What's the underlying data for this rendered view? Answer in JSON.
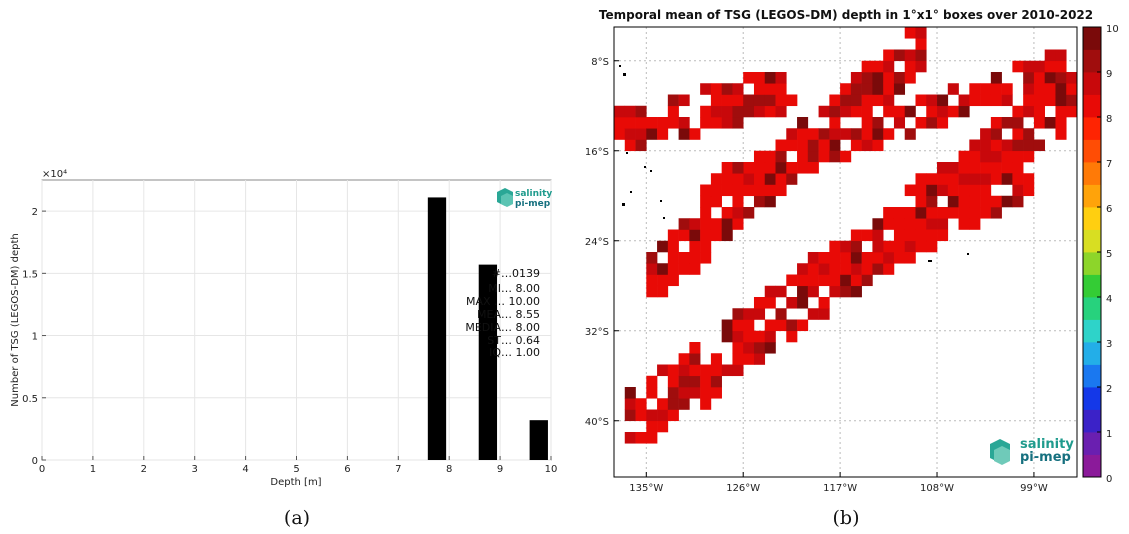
{
  "panel_a": {
    "caption": "(a)",
    "exponent": "×10⁴",
    "stats": [
      "#…0139",
      "MI… 8.00",
      "MAX … 10.00",
      "MEA… 8.55",
      "MEDIA… 8.00",
      "ST… 0.64",
      "IQ… 1.00"
    ],
    "logo": {
      "line1": "salinity",
      "line2": "pi-mep"
    }
  },
  "panel_b": {
    "caption": "(b)",
    "logo": {
      "line1": "salinity",
      "line2": "pi-mep"
    }
  },
  "chart_data": [
    {
      "type": "bar",
      "title": "",
      "xlabel": "Depth [m]",
      "ylabel": "Number of TSG (LEGOS-DM) depth",
      "x": [
        8,
        9,
        10
      ],
      "values": [
        21100,
        15700,
        3200
      ],
      "xlim": [
        0,
        10
      ],
      "ylim": [
        0,
        22500
      ],
      "x_ticks": [
        "0",
        "1",
        "2",
        "3",
        "4",
        "5",
        "6",
        "7",
        "8",
        "9",
        "10"
      ],
      "y_ticks": [
        "0",
        "0.5",
        "1",
        "1.5",
        "2"
      ],
      "y_tick_values": [
        0,
        5000,
        10000,
        15000,
        20000
      ],
      "grid": true,
      "bar_color": "#000000"
    },
    {
      "type": "heatmap",
      "title": "Temporal mean of TSG (LEGOS-DM) depth in 1°x1° boxes over 2010-2022",
      "x_ticks": [
        "135°W",
        "126°W",
        "117°W",
        "108°W",
        "99°W"
      ],
      "y_ticks": [
        "8°S",
        "16°S",
        "24°S",
        "32°S",
        "40°S"
      ],
      "xlim": [
        -138,
        -95
      ],
      "ylim": [
        -45,
        -5
      ],
      "colorbar": {
        "ticks": [
          "0",
          "1",
          "2",
          "3",
          "4",
          "5",
          "6",
          "7",
          "8",
          "9",
          "10"
        ],
        "range": [
          0,
          10
        ],
        "colors": [
          "#8b1a9a",
          "#6a1fb0",
          "#3b22c8",
          "#1438e8",
          "#1a78f0",
          "#23aee8",
          "#2ed3c9",
          "#27d27d",
          "#34cc35",
          "#8dd52a",
          "#d8de22",
          "#ffcf10",
          "#ffa30a",
          "#ff7a07",
          "#ff4d05",
          "#ff2402",
          "#e80a06",
          "#c8080b",
          "#a00d0d",
          "#7a0a0a"
        ]
      },
      "grid": true,
      "bands": [
        {
          "lon_start": -134.5,
          "lat_start": -27.0,
          "lon_end": -110.0,
          "lat_end": -6.0,
          "width": 5,
          "value": 8.5
        },
        {
          "lon_start": -138.0,
          "lat_start": -14.0,
          "lon_end": -122.0,
          "lat_end": -10.0,
          "width": 4,
          "value": 8.5
        },
        {
          "lon_start": -130.0,
          "lat_start": -19.0,
          "lon_end": -97.0,
          "lat_end": -8.0,
          "width": 3,
          "value": 8.5
        },
        {
          "lon_start": -137.0,
          "lat_start": -40.0,
          "lon_end": -96.0,
          "lat_end": -11.0,
          "width": 6,
          "value": 8.6
        },
        {
          "lon_start": -117.0,
          "lat_start": -27.0,
          "lon_end": -100.0,
          "lat_end": -18.0,
          "width": 3,
          "value": 8.8
        }
      ]
    }
  ]
}
